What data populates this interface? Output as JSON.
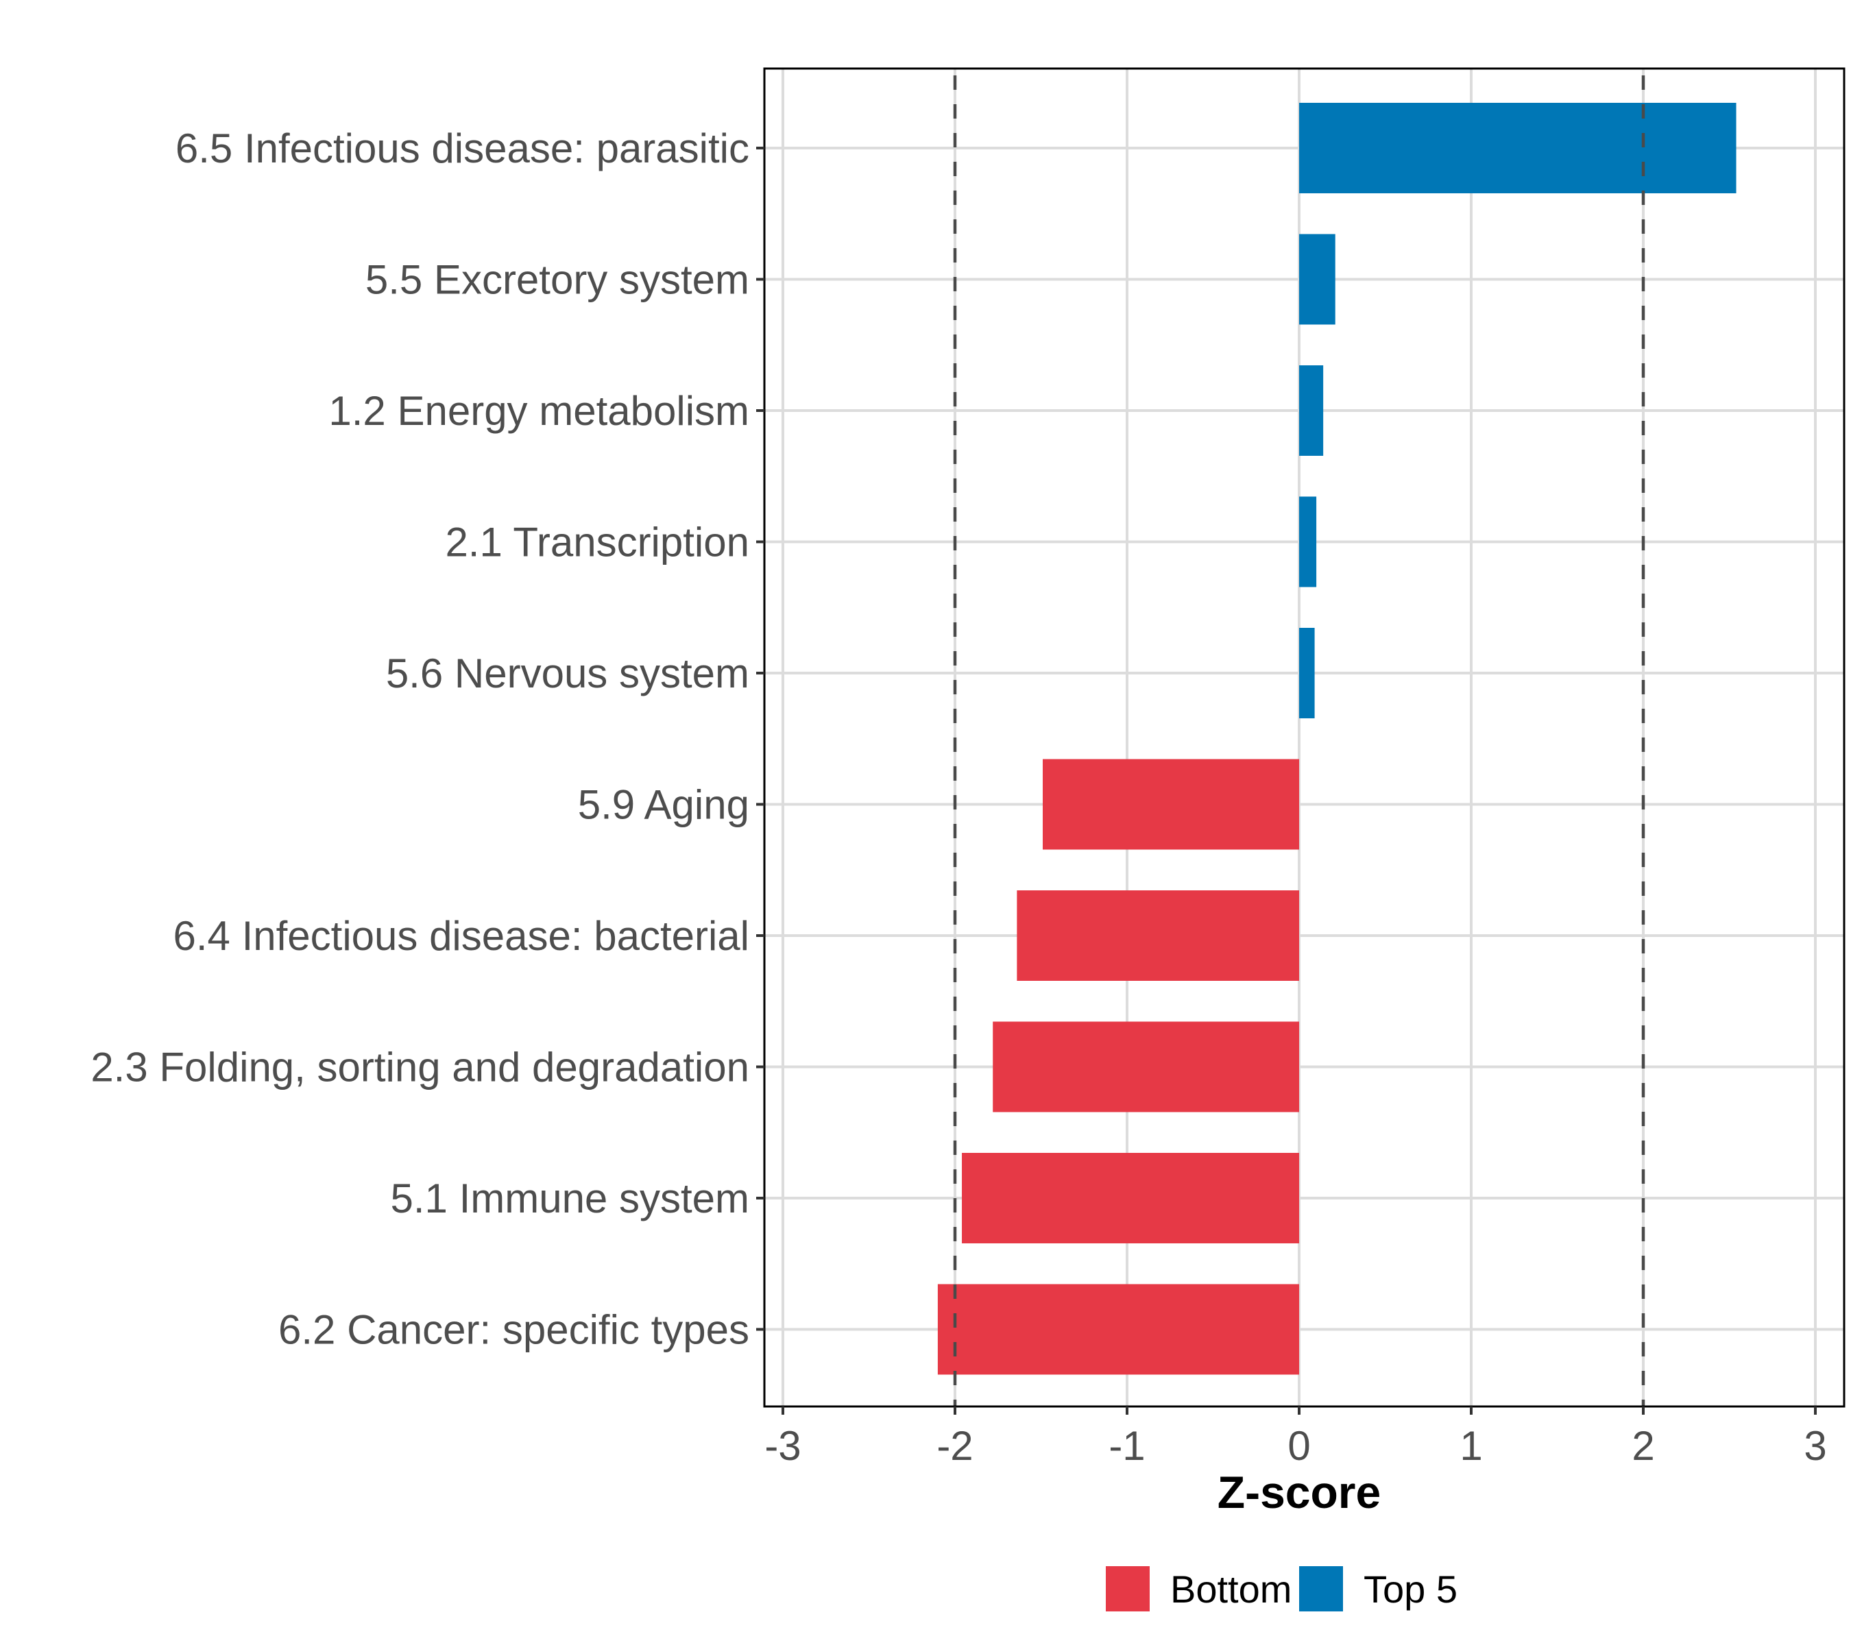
{
  "chart_data": {
    "type": "bar",
    "orientation": "horizontal",
    "title": "",
    "xlabel": "Z-score",
    "ylabel": "",
    "xlim": [
      -3.1,
      3.1
    ],
    "xticks": [
      -3,
      -2,
      -1,
      0,
      1,
      2,
      3
    ],
    "xtick_labels": [
      "-3",
      "-2",
      "-1",
      "0",
      "1",
      "2",
      "3"
    ],
    "grid": true,
    "reference_lines": [
      -2,
      2
    ],
    "reference_line_style": "dashed",
    "categories": [
      "6.5 Infectious disease: parasitic",
      "5.5 Excretory system",
      "1.2 Energy metabolism",
      "2.1 Transcription",
      "5.6 Nervous system",
      "5.9 Aging",
      "6.4 Infectious disease: bacterial",
      "2.3 Folding, sorting and degradation",
      "5.1 Immune system",
      "6.2 Cancer: specific types"
    ],
    "values": [
      2.54,
      0.21,
      0.14,
      0.1,
      0.09,
      -1.49,
      -1.64,
      -1.78,
      -1.96,
      -2.1
    ],
    "groups": [
      "Top 5",
      "Top 5",
      "Top 5",
      "Top 5",
      "Top 5",
      "Bottom 5",
      "Bottom 5",
      "Bottom 5",
      "Bottom 5",
      "Bottom 5"
    ],
    "legend": {
      "position": "bottom",
      "entries": [
        {
          "label": "Bottom 5",
          "color": "#E63946"
        },
        {
          "label": "Top 5",
          "color": "#0077B6"
        }
      ]
    },
    "colors": {
      "Top 5": "#0077B6",
      "Bottom 5": "#E63946"
    }
  }
}
